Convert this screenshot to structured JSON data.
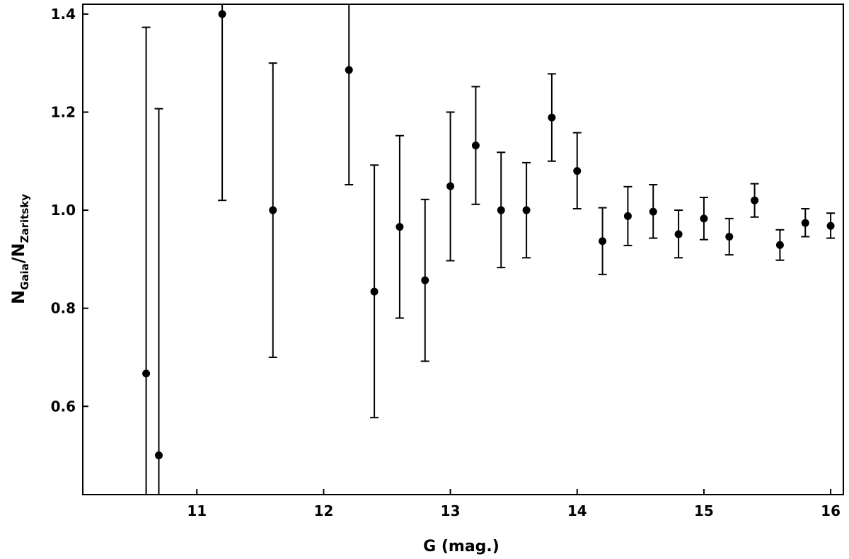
{
  "chart_data": {
    "type": "scatter",
    "xlabel": "G (mag.)",
    "ylabel": {
      "num_main": "N",
      "num_sub": "Gaia",
      "sep": "/",
      "den_main": "N",
      "den_sub": "Zaritsky"
    },
    "xlim": [
      10.1,
      16.1
    ],
    "ylim": [
      0.42,
      1.42
    ],
    "x_ticks": [
      11,
      12,
      13,
      14,
      15,
      16
    ],
    "x_tick_labels": [
      "11",
      "12",
      "13",
      "14",
      "15",
      "16"
    ],
    "y_ticks": [
      0.6,
      0.8,
      1.0,
      1.2,
      1.4
    ],
    "y_tick_labels": [
      "0.6",
      "0.8",
      "1.0",
      "1.2",
      "1.4"
    ],
    "grid": false,
    "series": [
      {
        "points": [
          {
            "x": 10.6,
            "y": 0.667,
            "y_low": 0.42,
            "y_high": 1.373
          },
          {
            "x": 10.7,
            "y": 0.5,
            "y_low": 0.42,
            "y_high": 1.207
          },
          {
            "x": 11.2,
            "y": 1.4,
            "y_low": 1.02,
            "y_high": 1.42
          },
          {
            "x": 11.6,
            "y": 1.0,
            "y_low": 0.7,
            "y_high": 1.3
          },
          {
            "x": 12.2,
            "y": 1.286,
            "y_low": 1.052,
            "y_high": 1.42
          },
          {
            "x": 12.4,
            "y": 0.834,
            "y_low": 0.577,
            "y_high": 1.092
          },
          {
            "x": 12.6,
            "y": 0.966,
            "y_low": 0.78,
            "y_high": 1.152
          },
          {
            "x": 12.8,
            "y": 0.857,
            "y_low": 0.692,
            "y_high": 1.022
          },
          {
            "x": 13.0,
            "y": 1.049,
            "y_low": 0.897,
            "y_high": 1.2
          },
          {
            "x": 13.2,
            "y": 1.132,
            "y_low": 1.012,
            "y_high": 1.252
          },
          {
            "x": 13.4,
            "y": 1.0,
            "y_low": 0.883,
            "y_high": 1.118
          },
          {
            "x": 13.6,
            "y": 1.0,
            "y_low": 0.903,
            "y_high": 1.097
          },
          {
            "x": 13.8,
            "y": 1.189,
            "y_low": 1.1,
            "y_high": 1.278
          },
          {
            "x": 14.0,
            "y": 1.08,
            "y_low": 1.003,
            "y_high": 1.158
          },
          {
            "x": 14.2,
            "y": 0.937,
            "y_low": 0.869,
            "y_high": 1.005
          },
          {
            "x": 14.4,
            "y": 0.988,
            "y_low": 0.928,
            "y_high": 1.048
          },
          {
            "x": 14.6,
            "y": 0.997,
            "y_low": 0.943,
            "y_high": 1.052
          },
          {
            "x": 14.8,
            "y": 0.951,
            "y_low": 0.903,
            "y_high": 1.0
          },
          {
            "x": 15.0,
            "y": 0.983,
            "y_low": 0.94,
            "y_high": 1.026
          },
          {
            "x": 15.2,
            "y": 0.946,
            "y_low": 0.909,
            "y_high": 0.983
          },
          {
            "x": 15.4,
            "y": 1.02,
            "y_low": 0.986,
            "y_high": 1.054
          },
          {
            "x": 15.6,
            "y": 0.929,
            "y_low": 0.898,
            "y_high": 0.96
          },
          {
            "x": 15.8,
            "y": 0.974,
            "y_low": 0.946,
            "y_high": 1.003
          },
          {
            "x": 16.0,
            "y": 0.968,
            "y_low": 0.943,
            "y_high": 0.994
          }
        ]
      }
    ]
  }
}
